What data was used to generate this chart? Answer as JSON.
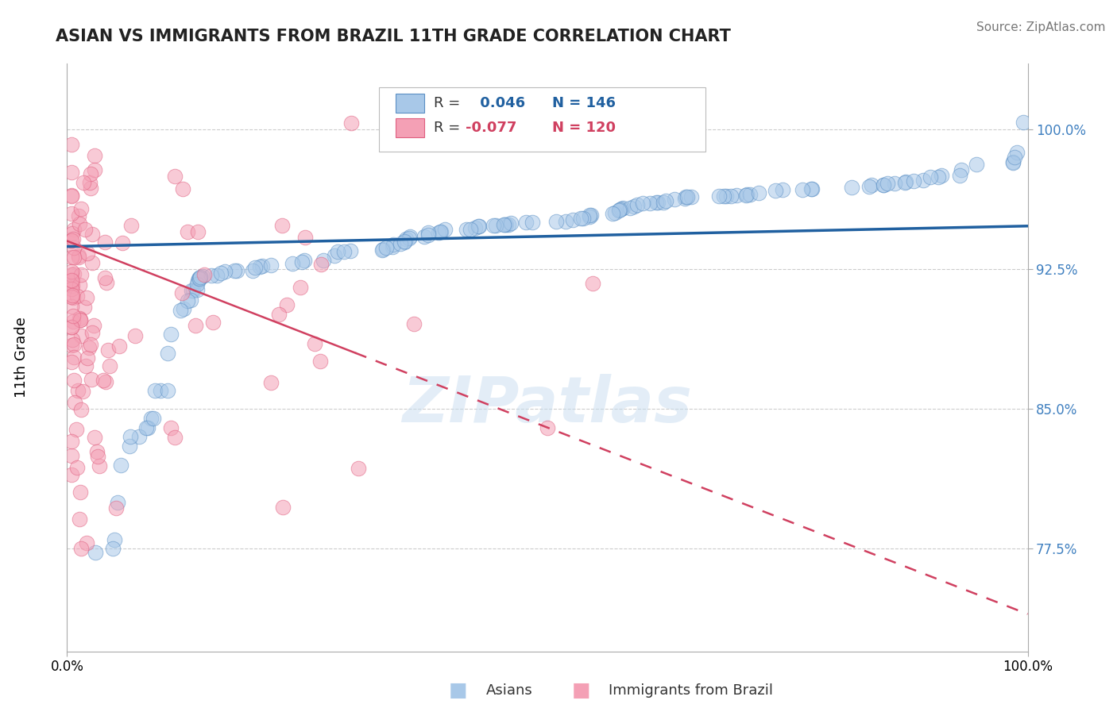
{
  "title": "ASIAN VS IMMIGRANTS FROM BRAZIL 11TH GRADE CORRELATION CHART",
  "source_text": "Source: ZipAtlas.com",
  "ylabel": "11th Grade",
  "x_min": 0.0,
  "x_max": 1.0,
  "y_min": 0.72,
  "y_max": 1.035,
  "y_ticks": [
    0.775,
    0.85,
    0.925,
    1.0
  ],
  "y_tick_labels": [
    "77.5%",
    "85.0%",
    "92.5%",
    "100.0%"
  ],
  "x_tick_labels": [
    "0.0%",
    "100.0%"
  ],
  "legend_r1_val": "0.046",
  "legend_n1_val": "146",
  "legend_r2_val": "-0.077",
  "legend_n2_val": "120",
  "color_asian": "#a8c8e8",
  "color_brazil": "#f4a0b5",
  "color_asian_edge": "#5b8fc4",
  "color_brazil_edge": "#e06080",
  "color_line_asian": "#2060a0",
  "color_line_brazil": "#d04060",
  "color_ytick": "#4080c0",
  "watermark": "ZIPatlas",
  "title_fontsize": 15,
  "tick_fontsize": 12,
  "ylabel_fontsize": 13,
  "source_fontsize": 11,
  "scatter_size": 180,
  "scatter_alpha": 0.55,
  "line_lw_asian": 2.5,
  "line_lw_brazil": 1.8,
  "grid_color": "#cccccc",
  "grid_lw": 0.8,
  "asian_line_y0": 0.937,
  "asian_line_y1": 0.948,
  "brazil_line_y0": 0.94,
  "brazil_line_y1": 0.74
}
